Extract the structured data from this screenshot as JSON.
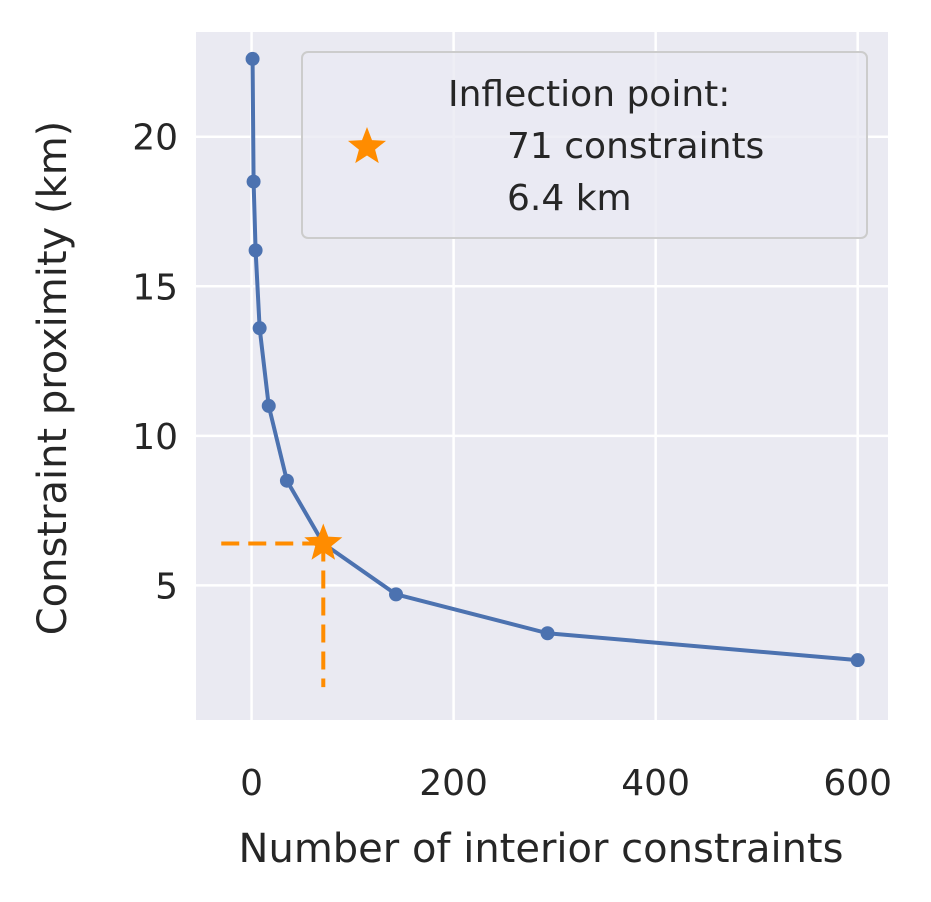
{
  "chart_data": {
    "type": "line",
    "xlabel": "Number of interior constraints",
    "ylabel": "Constraint proximity (km)",
    "xlim": [
      -55,
      630
    ],
    "ylim": [
      0.5,
      23.5
    ],
    "xticks": [
      0,
      200,
      400,
      600
    ],
    "xtick_labels": [
      "0",
      "200",
      "400",
      "600"
    ],
    "yticks": [
      5,
      10,
      15,
      20
    ],
    "ytick_labels": [
      "5",
      "10",
      "15",
      "20"
    ],
    "grid": true,
    "series": [
      {
        "color": "#4c72b0",
        "x": [
          1,
          2,
          4,
          8,
          17,
          35,
          71,
          143,
          293,
          600
        ],
        "y": [
          22.6,
          18.5,
          16.2,
          13.6,
          11.0,
          8.5,
          6.4,
          4.7,
          3.4,
          2.5
        ]
      }
    ],
    "inflection": {
      "x": 71,
      "y": 6.4,
      "color": "#ff8c00",
      "marker": "star"
    },
    "legend": {
      "placement": "top-right",
      "lines": [
        "Inflection point:",
        "71 constraints",
        "6.4 km"
      ]
    },
    "colors": {
      "plot_background": "#eaeaf2",
      "grid": "#ffffff",
      "line": "#4c72b0",
      "marker": "#ff8c00"
    }
  }
}
